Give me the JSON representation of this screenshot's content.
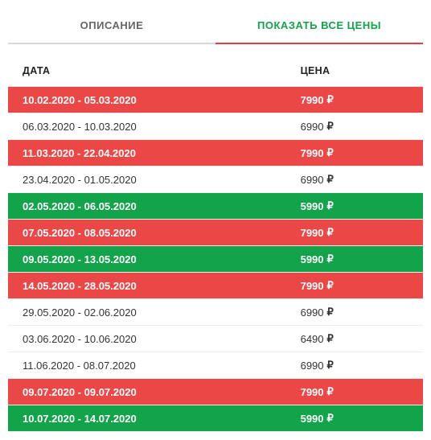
{
  "tabs": {
    "description": "ОПИСАНИЕ",
    "prices": "ПОКАЗАТЬ ВСЕ ЦЕНЫ"
  },
  "header": {
    "date": "ДАТА",
    "price": "ЦЕНА"
  },
  "currency_symbol": "₽",
  "colors": {
    "tab_active": "#13a34a",
    "tab_underline": "#e23c3c",
    "row_red": "#eb4747",
    "row_green": "#13a34a",
    "row_default_bg": "#ffffff",
    "row_default_text": "#333333",
    "row_colored_text": "#ffffff"
  },
  "rows": [
    {
      "date": "10.02.2020 - 05.03.2020",
      "price": "7990",
      "variant": "red"
    },
    {
      "date": "06.03.2020 - 10.03.2020",
      "price": "6990",
      "variant": "default"
    },
    {
      "date": "11.03.2020 - 22.04.2020",
      "price": "7990",
      "variant": "red"
    },
    {
      "date": "23.04.2020 - 01.05.2020",
      "price": "6990",
      "variant": "default"
    },
    {
      "date": "02.05.2020 - 06.05.2020",
      "price": "5990",
      "variant": "green"
    },
    {
      "date": "07.05.2020 - 08.05.2020",
      "price": "7990",
      "variant": "red"
    },
    {
      "date": "09.05.2020 - 13.05.2020",
      "price": "5990",
      "variant": "green"
    },
    {
      "date": "14.05.2020 - 28.05.2020",
      "price": "7990",
      "variant": "red"
    },
    {
      "date": "29.05.2020 - 02.06.2020",
      "price": "6990",
      "variant": "default"
    },
    {
      "date": "03.06.2020 - 10.06.2020",
      "price": "6490",
      "variant": "default"
    },
    {
      "date": "11.06.2020 - 08.07.2020",
      "price": "6990",
      "variant": "default"
    },
    {
      "date": "09.07.2020 - 09.07.2020",
      "price": "7990",
      "variant": "red"
    },
    {
      "date": "10.07.2020 - 14.07.2020",
      "price": "5990",
      "variant": "green"
    }
  ]
}
